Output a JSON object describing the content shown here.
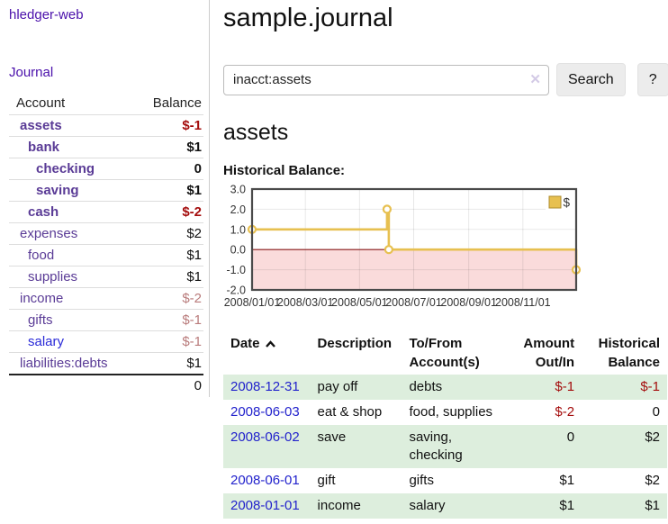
{
  "colors": {
    "brand_purple": "#4a10ab",
    "account_purple": "#5a3b96",
    "unvisited_blue": "#2a2ad8",
    "date_link_blue": "#2222cc",
    "negative_strong_red": "#a40d0d",
    "negative_muted_red": "#b97b7b",
    "row_stripe_green": "#ddeedd",
    "chart_line_yellow": "#e7c050",
    "chart_negative_pink": "#fadbdb",
    "chart_zero_red": "#8b1a1a"
  },
  "sidebar": {
    "brand": "hledger-web",
    "journal_link": "Journal",
    "account_header": "Account",
    "balance_header": "Balance",
    "accounts": [
      {
        "name": "assets",
        "balance": "$-1",
        "depth": 0,
        "bold": true,
        "balance_style": "negative-strong"
      },
      {
        "name": "bank",
        "balance": "$1",
        "depth": 1,
        "bold": true,
        "balance_style": ""
      },
      {
        "name": "checking",
        "balance": "0",
        "depth": 2,
        "bold": true,
        "balance_style": ""
      },
      {
        "name": "saving",
        "balance": "$1",
        "depth": 2,
        "bold": true,
        "balance_style": ""
      },
      {
        "name": "cash",
        "balance": "$-2",
        "depth": 1,
        "bold": true,
        "balance_style": "negative-strong"
      },
      {
        "name": "expenses",
        "balance": "$2",
        "depth": 0,
        "bold": false,
        "balance_style": ""
      },
      {
        "name": "food",
        "balance": "$1",
        "depth": 1,
        "bold": false,
        "balance_style": ""
      },
      {
        "name": "supplies",
        "balance": "$1",
        "depth": 1,
        "bold": false,
        "balance_style": ""
      },
      {
        "name": "income",
        "balance": "$-2",
        "depth": 0,
        "bold": false,
        "balance_style": "negative-muted"
      },
      {
        "name": "gifts",
        "balance": "$-1",
        "depth": 1,
        "bold": false,
        "balance_style": "negative-muted"
      },
      {
        "name": "salary",
        "balance": "$-1",
        "depth": 1,
        "bold": false,
        "balance_style": "negative-muted",
        "link": "blue"
      },
      {
        "name": "liabilities:debts",
        "balance": "$1",
        "depth": 0,
        "bold": false,
        "balance_style": ""
      }
    ],
    "total": "0"
  },
  "main": {
    "title": "sample.journal",
    "search": {
      "value": "inacct:assets",
      "clear_icon": "✕",
      "button": "Search",
      "help_button": "?"
    },
    "account_heading": "assets",
    "chart_label": "Historical Balance:"
  },
  "chart_data": {
    "type": "line",
    "step": true,
    "title": "Historical Balance:",
    "xlabel": "",
    "ylabel": "",
    "xlim": [
      "2008-01-01",
      "2008-12-31"
    ],
    "ylim": [
      -2,
      3
    ],
    "y_ticks": [
      3.0,
      2.0,
      1.0,
      0.0,
      -1.0,
      -2.0
    ],
    "x_ticks": [
      "2008/01/01",
      "2008/03/01",
      "2008/05/01",
      "2008/07/01",
      "2008/09/01",
      "2008/11/01"
    ],
    "grid": true,
    "legend_position": "top-right",
    "negative_fill": "#fadbdb",
    "zero_line_color": "#8b1a1a",
    "series": [
      {
        "name": "$",
        "color": "#e7c050",
        "points": [
          [
            "2008-01-01",
            1
          ],
          [
            "2008-06-01",
            2
          ],
          [
            "2008-06-03",
            0
          ],
          [
            "2008-12-31",
            -1
          ]
        ]
      }
    ]
  },
  "register": {
    "headers": {
      "date": "Date",
      "description": "Description",
      "account": "To/From Account(s)",
      "amount": "Amount Out/In",
      "balance": "Historical Balance"
    },
    "rows": [
      {
        "date": "2008-12-31",
        "description": "pay off",
        "accounts": "debts",
        "amount": "$-1",
        "amount_neg": true,
        "balance": "$-1",
        "balance_neg": true
      },
      {
        "date": "2008-06-03",
        "description": "eat & shop",
        "accounts": "food, supplies",
        "amount": "$-2",
        "amount_neg": true,
        "balance": "0",
        "balance_neg": false
      },
      {
        "date": "2008-06-02",
        "description": "save",
        "accounts": "saving, checking",
        "amount": "0",
        "amount_neg": false,
        "balance": "$2",
        "balance_neg": false
      },
      {
        "date": "2008-06-01",
        "description": "gift",
        "accounts": "gifts",
        "amount": "$1",
        "amount_neg": false,
        "balance": "$2",
        "balance_neg": false
      },
      {
        "date": "2008-01-01",
        "description": "income",
        "accounts": "salary",
        "amount": "$1",
        "amount_neg": false,
        "balance": "$1",
        "balance_neg": false
      }
    ]
  }
}
